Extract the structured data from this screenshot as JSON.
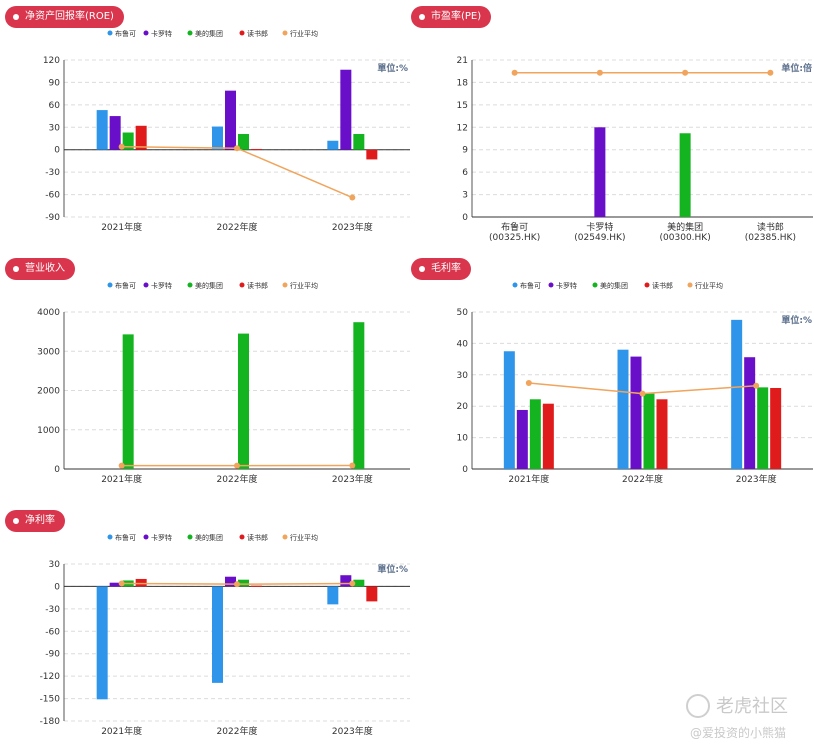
{
  "colors": {
    "badge": "#d9364d",
    "布鲁可": "#2f95ea",
    "卡罗特": "#6a0fc9",
    "美的集团": "#13b41f",
    "读书郎": "#e01b1b",
    "行业平均": "#f0a45c"
  },
  "legend": [
    "布鲁可",
    "卡罗特",
    "美的集团",
    "读书郎",
    "行业平均"
  ],
  "watermark": {
    "brand": "老虎社区",
    "author": "@爱投资的小熊猫"
  },
  "chart_data": [
    {
      "id": "roe",
      "title": "净资产回报率(ROE)",
      "type": "bar",
      "unit_label": "單位:%",
      "categories": [
        "2021年度",
        "2022年度",
        "2023年度"
      ],
      "series": [
        {
          "name": "布鲁可",
          "values": [
            53,
            31,
            12
          ]
        },
        {
          "name": "卡罗特",
          "values": [
            45,
            79,
            107
          ]
        },
        {
          "name": "美的集团",
          "values": [
            23,
            21,
            21
          ]
        },
        {
          "name": "读书郎",
          "values": [
            32,
            1,
            -13
          ]
        }
      ],
      "line": {
        "name": "行业平均",
        "values": [
          4,
          2,
          -64
        ]
      },
      "ylim": [
        -90,
        120
      ],
      "yticks": [
        -90,
        -60,
        -30,
        0,
        30,
        60,
        90,
        120
      ],
      "grid": true,
      "legend": "top"
    },
    {
      "id": "pe",
      "title": "市盈率(PE)",
      "type": "bar",
      "unit_label": "单位:倍",
      "categories": [
        "布鲁可\n(00325.HK)",
        "卡罗特\n(02549.HK)",
        "美的集团\n(00300.HK)",
        "读书郎\n(02385.HK)"
      ],
      "series": [
        {
          "name": "市盈率",
          "values": [
            0,
            12,
            11.2,
            0
          ],
          "colors_by": [
            "布鲁可",
            "卡罗特",
            "美的集团",
            "读书郎"
          ]
        }
      ],
      "line": {
        "name": "行业平均",
        "values": [
          19.3,
          19.3,
          19.3,
          19.3
        ]
      },
      "ylim": [
        0,
        21
      ],
      "yticks": [
        0,
        3,
        6,
        9,
        12,
        15,
        18,
        21
      ],
      "grid": true,
      "legend": "none"
    },
    {
      "id": "revenue",
      "title": "营业收入",
      "type": "bar",
      "unit_label": "",
      "categories": [
        "2021年度",
        "2022年度",
        "2023年度"
      ],
      "series": [
        {
          "name": "布鲁可",
          "values": [
            0,
            0,
            0
          ]
        },
        {
          "name": "卡罗特",
          "values": [
            0,
            0,
            0
          ]
        },
        {
          "name": "美的集团",
          "values": [
            3430,
            3450,
            3740
          ]
        },
        {
          "name": "读书郎",
          "values": [
            0,
            0,
            0
          ]
        }
      ],
      "line": {
        "name": "行业平均",
        "values": [
          85,
          85,
          90
        ]
      },
      "ylim": [
        0,
        4000
      ],
      "yticks": [
        0,
        1000,
        2000,
        3000,
        4000
      ],
      "grid": true,
      "legend": "top"
    },
    {
      "id": "gross",
      "title": "毛利率",
      "type": "bar",
      "unit_label": "單位:%",
      "categories": [
        "2021年度",
        "2022年度",
        "2023年度"
      ],
      "series": [
        {
          "name": "布鲁可",
          "values": [
            37.5,
            38,
            47.5
          ]
        },
        {
          "name": "卡罗特",
          "values": [
            18.8,
            35.8,
            35.6
          ]
        },
        {
          "name": "美的集团",
          "values": [
            22.2,
            24,
            26
          ]
        },
        {
          "name": "读书郎",
          "values": [
            20.8,
            22.2,
            25.8
          ]
        }
      ],
      "line": {
        "name": "行业平均",
        "values": [
          27.4,
          24,
          26.5
        ]
      },
      "ylim": [
        0,
        50
      ],
      "yticks": [
        0,
        10,
        20,
        30,
        40,
        50
      ],
      "grid": true,
      "legend": "top"
    },
    {
      "id": "net",
      "title": "净利率",
      "type": "bar",
      "unit_label": "單位:%",
      "categories": [
        "2021年度",
        "2022年度",
        "2023年度"
      ],
      "series": [
        {
          "name": "布鲁可",
          "values": [
            -151,
            -129,
            -24
          ]
        },
        {
          "name": "卡罗特",
          "values": [
            5,
            13,
            15
          ]
        },
        {
          "name": "美的集团",
          "values": [
            8,
            9,
            9
          ]
        },
        {
          "name": "读书郎",
          "values": [
            10,
            1,
            -20
          ]
        }
      ],
      "line": {
        "name": "行业平均",
        "values": [
          4,
          3,
          4
        ]
      },
      "ylim": [
        -180,
        30
      ],
      "yticks": [
        -180,
        -150,
        -120,
        -90,
        -60,
        -30,
        0,
        30
      ],
      "grid": true,
      "legend": "top"
    }
  ]
}
